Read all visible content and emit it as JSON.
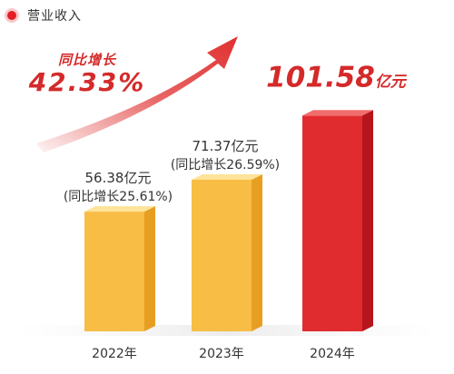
{
  "header": {
    "title": "营业收入"
  },
  "growth_callout": {
    "label": "同比增长",
    "value": "42.33%"
  },
  "chart_data": {
    "type": "bar",
    "title": "营业收入",
    "categories": [
      "2022年",
      "2023年",
      "2024年"
    ],
    "values": [
      56.38,
      71.37,
      101.58
    ],
    "value_labels": [
      "56.38亿元",
      "71.37亿元",
      "101.58亿元"
    ],
    "growth_labels": [
      "(同比增长25.61%)",
      "(同比增长26.59%)",
      ""
    ],
    "highlight_index": 2,
    "unit": "亿元",
    "colors": {
      "normal_front": "#f7bd45",
      "normal_top": "#fde49a",
      "normal_side": "#e79f22",
      "highlight_front": "#e12c2f",
      "highlight_top": "#f26d6d",
      "highlight_side": "#b5151b",
      "accent": "#d42a2a"
    }
  }
}
